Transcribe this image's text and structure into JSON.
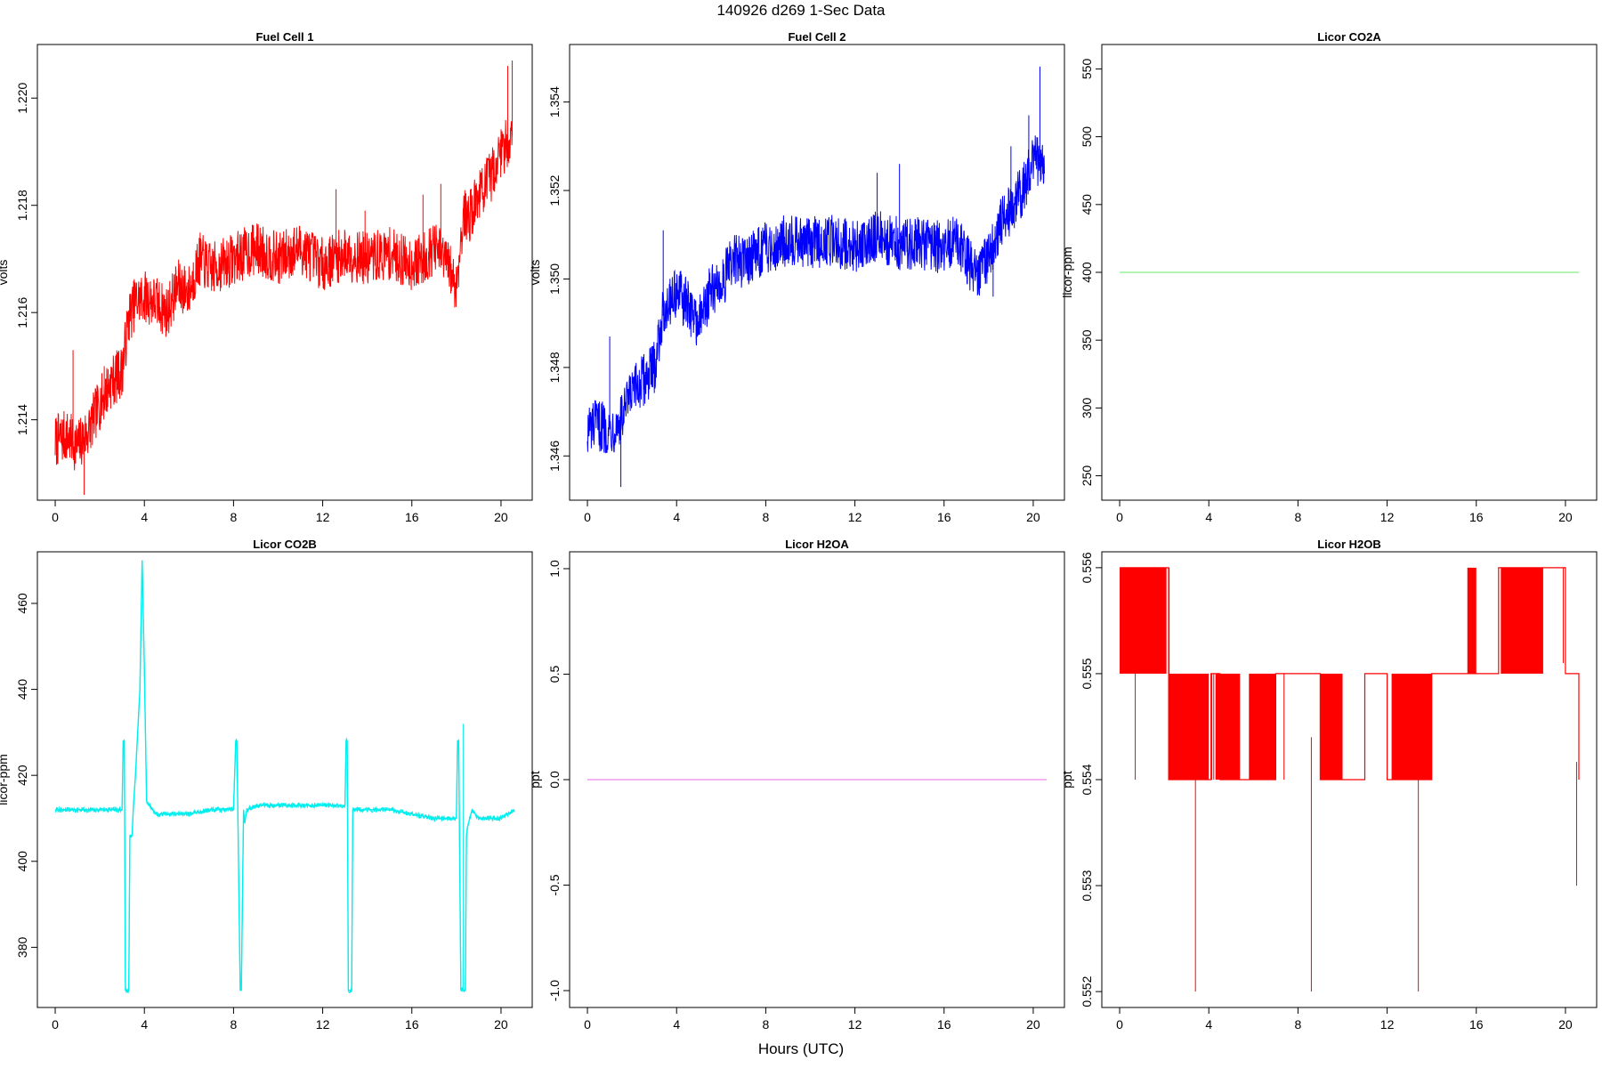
{
  "figure": {
    "title": "140926   d269   1-Sec Data",
    "xlabel": "Hours (UTC)"
  },
  "chart_data": [
    {
      "type": "line",
      "title": "Fuel Cell 1",
      "xlabel": "",
      "ylabel": "volts",
      "color": "#ff0000",
      "xlim": [
        -0.8,
        21.4
      ],
      "ylim": [
        1.2125,
        1.221
      ],
      "xticks": [
        0,
        4,
        8,
        12,
        16,
        20
      ],
      "yticks": [
        1.214,
        1.216,
        1.218,
        1.22
      ],
      "ytick_labels": [
        "1.214",
        "1.216",
        "1.218",
        "1.220"
      ],
      "noise": 0.0005,
      "series": [
        {
          "x": [
            0,
            0.5,
            1,
            1.5,
            2,
            2.5,
            3,
            3.3,
            3.6,
            4,
            4.5,
            5,
            5.5,
            6,
            6.5,
            7,
            8,
            9,
            10,
            11,
            12,
            13,
            14,
            15,
            16,
            16.5,
            17,
            17.5,
            18,
            18.3,
            18.6,
            19,
            19.5,
            20,
            20.5
          ],
          "y": [
            1.2136,
            1.2137,
            1.2135,
            1.2138,
            1.2143,
            1.2147,
            1.2149,
            1.2159,
            1.2162,
            1.2163,
            1.2162,
            1.216,
            1.2165,
            1.2164,
            1.217,
            1.2168,
            1.217,
            1.2172,
            1.217,
            1.2172,
            1.2169,
            1.2171,
            1.217,
            1.2171,
            1.2169,
            1.217,
            1.2172,
            1.217,
            1.2165,
            1.2178,
            1.2178,
            1.2182,
            1.2185,
            1.219,
            1.2193
          ]
        }
      ],
      "spikes": [
        {
          "x": 0.8,
          "y": 1.2153
        },
        {
          "x": 2.2,
          "y": 1.215
        },
        {
          "x": 1.3,
          "y": 1.2126
        },
        {
          "x": 12.6,
          "y": 1.2183
        },
        {
          "x": 13.9,
          "y": 1.2179
        },
        {
          "x": 16.5,
          "y": 1.2182
        },
        {
          "x": 17.3,
          "y": 1.2184
        },
        {
          "x": 20.3,
          "y": 1.2206
        },
        {
          "x": 20.5,
          "y": 1.2207
        }
      ]
    },
    {
      "type": "line",
      "title": "Fuel Cell 2",
      "xlabel": "",
      "ylabel": "volts",
      "color": "#0000ff",
      "xlim": [
        -0.8,
        21.4
      ],
      "ylim": [
        1.345,
        1.3553
      ],
      "xticks": [
        0,
        4,
        8,
        12,
        16,
        20
      ],
      "yticks": [
        1.346,
        1.348,
        1.35,
        1.352,
        1.354
      ],
      "ytick_labels": [
        "1.346",
        "1.348",
        "1.350",
        "1.352",
        "1.354"
      ],
      "noise": 0.0006,
      "series": [
        {
          "x": [
            0,
            0.5,
            1,
            1.5,
            2,
            2.5,
            3,
            3.3,
            3.6,
            4,
            4.5,
            5,
            5.5,
            6,
            6.5,
            7,
            8,
            9,
            10,
            11,
            12,
            13,
            14,
            15,
            16,
            16.5,
            17,
            17.5,
            18,
            18.5,
            19,
            19.5,
            20,
            20.5
          ],
          "y": [
            1.3466,
            1.3467,
            1.3466,
            1.3468,
            1.3474,
            1.3477,
            1.348,
            1.349,
            1.3495,
            1.3497,
            1.3494,
            1.349,
            1.3497,
            1.3499,
            1.3504,
            1.3504,
            1.3507,
            1.3509,
            1.3508,
            1.3509,
            1.3507,
            1.351,
            1.3508,
            1.3508,
            1.3507,
            1.3509,
            1.3505,
            1.35,
            1.3505,
            1.3512,
            1.3516,
            1.352,
            1.3527,
            1.3527
          ]
        }
      ],
      "spikes": [
        {
          "x": 1.0,
          "y": 1.3487
        },
        {
          "x": 1.5,
          "y": 1.3453
        },
        {
          "x": 3.4,
          "y": 1.3511
        },
        {
          "x": 13.0,
          "y": 1.3524
        },
        {
          "x": 14.0,
          "y": 1.3526
        },
        {
          "x": 18.2,
          "y": 1.3496
        },
        {
          "x": 19.0,
          "y": 1.353
        },
        {
          "x": 19.8,
          "y": 1.3537
        },
        {
          "x": 20.3,
          "y": 1.3548
        }
      ]
    },
    {
      "type": "line",
      "title": "Licor CO2A",
      "xlabel": "",
      "ylabel": "licor-ppm",
      "color": "#88ee88",
      "xlim": [
        -0.8,
        21.4
      ],
      "ylim": [
        232,
        568
      ],
      "xticks": [
        0,
        4,
        8,
        12,
        16,
        20
      ],
      "yticks": [
        250,
        300,
        350,
        400,
        450,
        500,
        550
      ],
      "ytick_labels": [
        "250",
        "300",
        "350",
        "400",
        "450",
        "500",
        "550"
      ],
      "noise": 0,
      "series": [
        {
          "x": [
            0,
            20.6
          ],
          "y": [
            400,
            400
          ]
        }
      ],
      "spikes": []
    },
    {
      "type": "line",
      "title": "Licor CO2B",
      "xlabel": "",
      "ylabel": "licor-ppm",
      "color": "#00eeee",
      "xlim": [
        -0.8,
        21.4
      ],
      "ylim": [
        366,
        472
      ],
      "xticks": [
        0,
        4,
        8,
        12,
        16,
        20
      ],
      "yticks": [
        380,
        400,
        420,
        440,
        460
      ],
      "ytick_labels": [
        "380",
        "400",
        "420",
        "440",
        "460"
      ],
      "noise": 0.6,
      "series": [
        {
          "x": [
            0,
            1,
            2,
            3,
            3.05,
            3.1,
            3.15,
            3.3,
            3.35,
            3.45,
            3.5,
            3.6,
            3.8,
            3.9,
            4.0,
            4.1,
            4.5,
            5,
            6,
            7,
            8,
            8.1,
            8.15,
            8.3,
            8.35,
            8.45,
            8.5,
            8.6,
            9,
            10,
            12,
            13,
            13.05,
            13.1,
            13.15,
            13.3,
            13.35,
            13.5,
            14,
            15,
            16,
            17,
            18,
            18.05,
            18.1,
            18.2,
            18.4,
            18.45,
            18.5,
            18.7,
            19,
            20,
            20.6
          ],
          "y": [
            412,
            412,
            412,
            412,
            428,
            428,
            370,
            370,
            406,
            406,
            412,
            420,
            440,
            470,
            445,
            414,
            411,
            411,
            411,
            412,
            412,
            428,
            428,
            370,
            370,
            412,
            409,
            412,
            413,
            413,
            413,
            413,
            428,
            428,
            370,
            370,
            412,
            412,
            412,
            412,
            411,
            410,
            410,
            428,
            428,
            370,
            370,
            406,
            408,
            412,
            410,
            410,
            412
          ]
        }
      ],
      "spikes": [
        {
          "x": 18.3,
          "y": 432
        },
        {
          "x": 3.9,
          "y": 468
        }
      ]
    },
    {
      "type": "line",
      "title": "Licor H2OA",
      "xlabel": "",
      "ylabel": "ppt",
      "color": "#ee88ee",
      "xlim": [
        -0.8,
        21.4
      ],
      "ylim": [
        -1.08,
        1.08
      ],
      "xticks": [
        0,
        4,
        8,
        12,
        16,
        20
      ],
      "yticks": [
        -1.0,
        -0.5,
        0.0,
        0.5,
        1.0
      ],
      "ytick_labels": [
        "-1.0",
        "-0.5",
        "0.0",
        "0.5",
        "1.0"
      ],
      "noise": 0,
      "series": [
        {
          "x": [
            0,
            20.6
          ],
          "y": [
            0,
            0
          ]
        }
      ],
      "spikes": []
    },
    {
      "type": "line",
      "title": "Licor H2OB",
      "xlabel": "",
      "ylabel": "ppt",
      "color": "#ff0000",
      "xlim": [
        -0.8,
        21.4
      ],
      "ylim": [
        0.55185,
        0.55615
      ],
      "xticks": [
        0,
        4,
        8,
        12,
        16,
        20
      ],
      "yticks": [
        0.552,
        0.553,
        0.554,
        0.555,
        0.556
      ],
      "ytick_labels": [
        "0.552",
        "0.553",
        "0.554",
        "0.555",
        "0.556"
      ],
      "noise": 0,
      "series": [
        {
          "x": [
            0,
            2.1,
            2.2,
            4,
            4.1,
            4.5,
            5,
            5.5,
            7,
            8,
            9,
            10,
            11,
            12,
            13.5,
            14,
            15,
            16,
            17,
            19,
            20,
            20.6
          ],
          "y": [
            0.556,
            0.556,
            0.554,
            0.554,
            0.555,
            0.554,
            0.554,
            0.554,
            0.555,
            0.555,
            0.554,
            0.554,
            0.555,
            0.554,
            0.554,
            0.555,
            0.555,
            0.555,
            0.556,
            0.556,
            0.555,
            0.554
          ]
        }
      ],
      "dense_bands": [
        {
          "x0": 0.0,
          "x1": 2.1,
          "lo": 0.555,
          "hi": 0.556
        },
        {
          "x0": 2.2,
          "x1": 4.0,
          "lo": 0.554,
          "hi": 0.555
        },
        {
          "x0": 4.3,
          "x1": 5.4,
          "lo": 0.554,
          "hi": 0.555
        },
        {
          "x0": 5.8,
          "x1": 7.0,
          "lo": 0.554,
          "hi": 0.555
        },
        {
          "x0": 9.0,
          "x1": 10.0,
          "lo": 0.554,
          "hi": 0.555
        },
        {
          "x0": 12.2,
          "x1": 14.0,
          "lo": 0.554,
          "hi": 0.555
        },
        {
          "x0": 15.6,
          "x1": 16.0,
          "lo": 0.555,
          "hi": 0.556
        },
        {
          "x0": 17.1,
          "x1": 19.0,
          "lo": 0.555,
          "hi": 0.556
        }
      ],
      "spikes": [
        {
          "x": 3.4,
          "y": 0.552
        },
        {
          "x": 8.6,
          "y": 0.552
        },
        {
          "x": 13.4,
          "y": 0.552
        },
        {
          "x": 20.5,
          "y": 0.553
        },
        {
          "x": 0.7,
          "y": 0.554
        },
        {
          "x": 19.9,
          "y": 0.556
        }
      ]
    }
  ]
}
